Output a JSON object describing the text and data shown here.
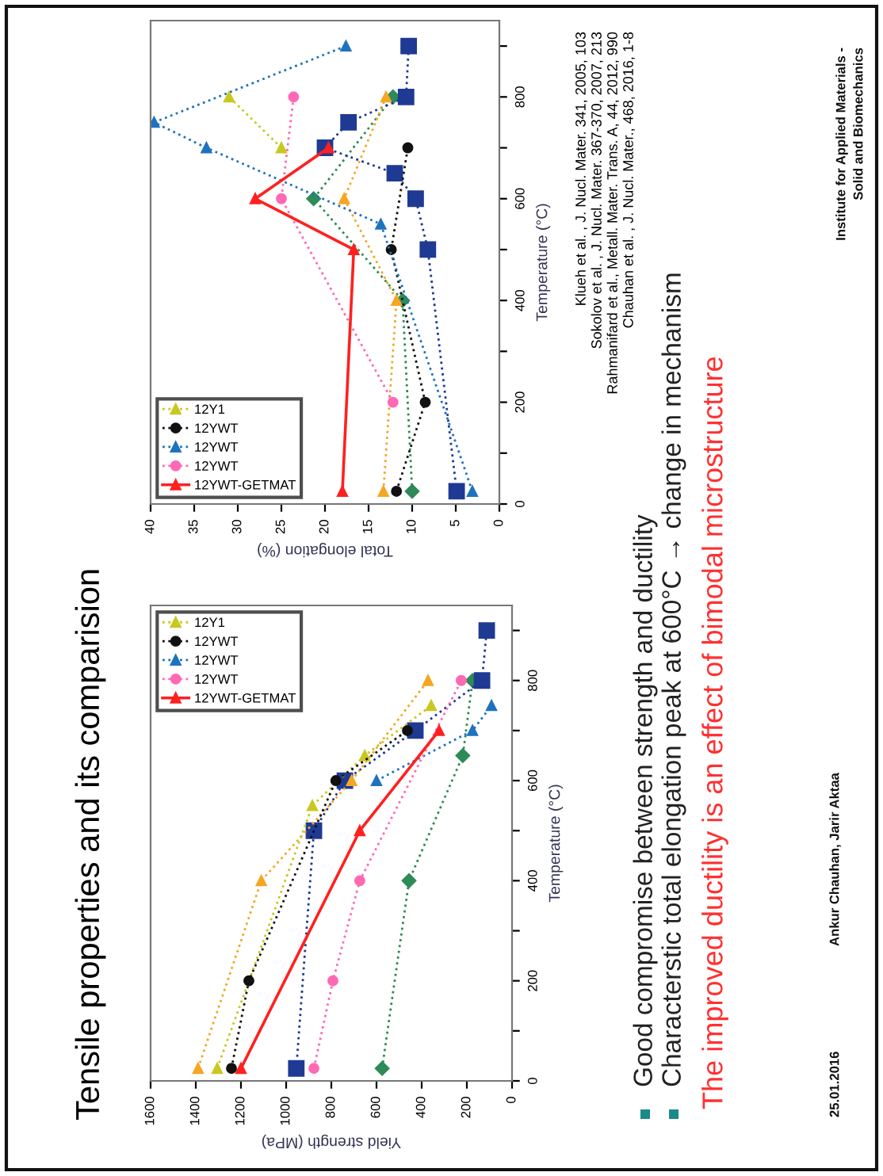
{
  "chart_data": [
    {
      "type": "line",
      "xlabel": "Yield strength (MPa)",
      "ylabel": "Temperature (°C)",
      "xlim": [
        1600,
        0
      ],
      "xticks": [
        1600,
        1400,
        1200,
        1000,
        800,
        600,
        400,
        200,
        0
      ],
      "ylim": [
        0,
        950
      ],
      "yticks": [
        0,
        {
          "value": 100,
          "label": null
        },
        200,
        {
          "value": 300,
          "label": null
        },
        400,
        {
          "value": 500,
          "label": null
        },
        600,
        {
          "value": 700,
          "label": null
        },
        800,
        {
          "value": 900,
          "label": null
        }
      ],
      "legend": "top left",
      "series": [
        {
          "color": "#2e8b57",
          "marker": "diamond",
          "line_style": "dotted",
          "x": [
            575,
            456,
            218,
            175
          ],
          "values": [
            25,
            400,
            650,
            800
          ]
        },
        {
          "color": "#1f3a93",
          "marker": "square",
          "line_style": "dotted",
          "x": [
            955,
            877,
            740,
            428,
            133,
            112
          ],
          "values": [
            25,
            500,
            600,
            700,
            800,
            900
          ]
        },
        {
          "color": "#f5a623",
          "marker": "triangle",
          "line_style": "dotted",
          "x": [
            1390,
            1110,
            710,
            372
          ],
          "values": [
            25,
            400,
            600,
            800
          ]
        },
        {
          "name": "12Y1",
          "color": "#c8c820",
          "marker": "triangle",
          "line_style": "dotted",
          "x": [
            1305,
            884,
            652,
            358
          ],
          "values": [
            25,
            550,
            650,
            750
          ]
        },
        {
          "name": "12YWT",
          "color": "#111111",
          "marker": "circle",
          "line_style": "dotted",
          "x": [
            1242,
            1165,
            780,
            463
          ],
          "values": [
            25,
            200,
            600,
            700
          ]
        },
        {
          "name": "12YWT",
          "color": "#1e73be",
          "marker": "triangle",
          "line_style": "dotted",
          "x": [
            600,
            175,
            91
          ],
          "values": [
            600,
            700,
            750
          ]
        },
        {
          "name": "12YWT",
          "color": "#ff69b4",
          "marker": "circle",
          "line_style": "dotted",
          "x": [
            877,
            793,
            674,
            225
          ],
          "values": [
            25,
            200,
            400,
            800
          ]
        },
        {
          "name": "12YWT-GETMAT",
          "color": "#ff2020",
          "marker": "triangle",
          "line_style": "solid",
          "x": [
            1200,
            674,
            323
          ],
          "values": [
            25,
            500,
            700
          ]
        }
      ]
    },
    {
      "type": "line",
      "xlabel": "Total elongation (%)",
      "ylabel": "Temperature (°C)",
      "xlim": [
        40,
        0
      ],
      "xticks": [
        40,
        35,
        30,
        25,
        20,
        15,
        10,
        5,
        0
      ],
      "ylim": [
        0,
        950
      ],
      "yticks": [
        0,
        {
          "value": 100,
          "label": null
        },
        200,
        {
          "value": 300,
          "label": null
        },
        400,
        {
          "value": 500,
          "label": null
        },
        600,
        {
          "value": 700,
          "label": null
        },
        800,
        {
          "value": 900,
          "label": null
        }
      ],
      "legend": "bottom left",
      "annotations": [
        "Klueh et al. , J. Nucl. Mater. 341, 2005, 103",
        "Sokolov et al. , J. Nucl. Mater. 367-370, 2007, 213",
        "Rahmanifard et al., Metall. Mater. Trans. A, 44, 2012, 990",
        "Chauhan et al. , J. Nucl. Mater., 468, 2016, 1-8"
      ],
      "series": [
        {
          "color": "#2e8b57",
          "marker": "diamond",
          "line_style": "dotted",
          "x": [
            10,
            11.1,
            21.3,
            12.2
          ],
          "values": [
            25,
            400,
            600,
            800
          ]
        },
        {
          "color": "#1f3a93",
          "marker": "square",
          "line_style": "dotted",
          "x": [
            4.9,
            8.2,
            9.6,
            12,
            20,
            17.3,
            10.7,
            10.4
          ],
          "values": [
            25,
            500,
            600,
            650,
            700,
            750,
            800,
            900
          ]
        },
        {
          "color": "#f5a623",
          "marker": "triangle",
          "line_style": "dotted",
          "x": [
            13.3,
            11.8,
            17.8,
            13
          ],
          "values": [
            25,
            400,
            600,
            800
          ]
        },
        {
          "name": "12Y1",
          "color": "#c8c820",
          "marker": "triangle",
          "line_style": "dotted",
          "x": [
            25,
            31
          ],
          "values": [
            700,
            800
          ]
        },
        {
          "name": "12YWT",
          "color": "#111111",
          "marker": "circle",
          "line_style": "dotted",
          "x": [
            11.8,
            8.5,
            12.4,
            10.5
          ],
          "values": [
            25,
            200,
            500,
            700
          ]
        },
        {
          "name": "12YWT",
          "color": "#1e73be",
          "marker": "triangle",
          "line_style": "dotted",
          "x": [
            3.1,
            13.6,
            33.6,
            39.6,
            17.6
          ],
          "values": [
            25,
            550,
            700,
            750,
            900
          ]
        },
        {
          "name": "12YWT",
          "color": "#ff69b4",
          "marker": "circle",
          "line_style": "dotted",
          "x": [
            12.2,
            25,
            23.6
          ],
          "values": [
            200,
            600,
            800
          ]
        },
        {
          "name": "12YWT-GETMAT",
          "color": "#ff2020",
          "marker": "triangle",
          "line_style": "solid",
          "x": [
            18,
            16.7,
            28,
            19.6
          ],
          "values": [
            25,
            500,
            600,
            700
          ]
        }
      ]
    },
    {
      "type": "other",
      "title": "Tensile properties and its comparision",
      "annotations": [
        "Good compromise between strength and ductility",
        "Characterstic total elongation peak at 600°C → change in mechanism",
        "The improved ductility is an effect of bimodal microstructure",
        "25.01.2016",
        "Ankur Chauhan, Jarir Aktaa",
        "Institute for Applied Materials -",
        "Solid and Biomechanics"
      ]
    }
  ]
}
